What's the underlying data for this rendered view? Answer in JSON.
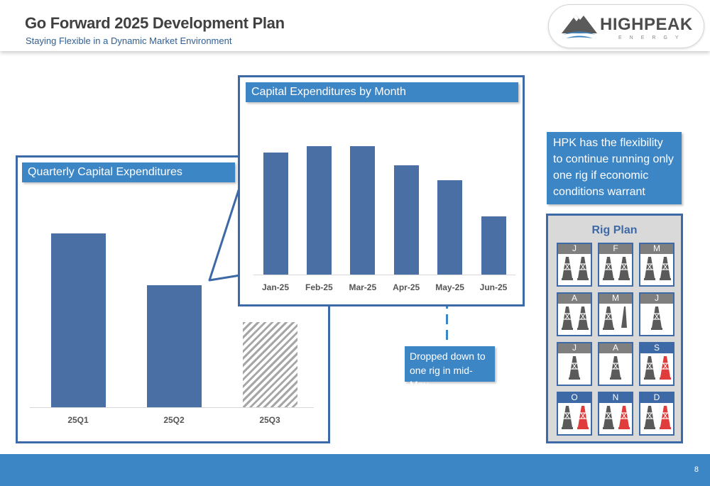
{
  "header": {
    "title": "Go Forward 2025 Development Plan",
    "subtitle": "Staying Flexible in a Dynamic Market Environment",
    "logo_text": "HIGHPEAK",
    "logo_sub": "ENERGY"
  },
  "chart_data": [
    {
      "type": "bar",
      "title": "Quarterly Capital Expenditures",
      "categories": [
        "25Q1",
        "25Q2",
        "25Q3"
      ],
      "values": [
        100,
        70,
        49
      ],
      "styles": [
        "solid",
        "solid",
        "hatched"
      ],
      "ylim": [
        0,
        110
      ],
      "grid": false,
      "colors": {
        "bar": "#4a6fa5",
        "hatch": "#a6a6a6"
      }
    },
    {
      "type": "bar",
      "title": "Capital Expenditures by Month",
      "categories": [
        "Jan-25",
        "Feb-25",
        "Mar-25",
        "Apr-25",
        "May-25",
        "Jun-25"
      ],
      "values": [
        96,
        101,
        101,
        86,
        74,
        46
      ],
      "ylim": [
        0,
        110
      ],
      "grid": false,
      "colors": {
        "bar": "#4a6fa5"
      }
    }
  ],
  "callouts": {
    "flexibility": "HPK has the flexibility to continue running only one rig if economic conditions warrant",
    "drop": "Dropped down to one rig in mid-May"
  },
  "rig_plan": {
    "title": "Rig Plan",
    "months": [
      {
        "label": "J",
        "gray_rigs": 2,
        "red_rigs": 0,
        "half_rig": false,
        "future": false
      },
      {
        "label": "F",
        "gray_rigs": 2,
        "red_rigs": 0,
        "half_rig": false,
        "future": false
      },
      {
        "label": "M",
        "gray_rigs": 2,
        "red_rigs": 0,
        "half_rig": false,
        "future": false
      },
      {
        "label": "A",
        "gray_rigs": 2,
        "red_rigs": 0,
        "half_rig": false,
        "future": false
      },
      {
        "label": "M",
        "gray_rigs": 1,
        "red_rigs": 0,
        "half_rig": true,
        "future": false
      },
      {
        "label": "J",
        "gray_rigs": 1,
        "red_rigs": 0,
        "half_rig": false,
        "future": false
      },
      {
        "label": "J",
        "gray_rigs": 1,
        "red_rigs": 0,
        "half_rig": false,
        "future": false
      },
      {
        "label": "A",
        "gray_rigs": 1,
        "red_rigs": 0,
        "half_rig": false,
        "future": false
      },
      {
        "label": "S",
        "gray_rigs": 1,
        "red_rigs": 1,
        "half_rig": false,
        "future": true
      },
      {
        "label": "O",
        "gray_rigs": 1,
        "red_rigs": 1,
        "half_rig": false,
        "future": true
      },
      {
        "label": "N",
        "gray_rigs": 1,
        "red_rigs": 1,
        "half_rig": false,
        "future": true
      },
      {
        "label": "D",
        "gray_rigs": 1,
        "red_rigs": 1,
        "half_rig": false,
        "future": true
      }
    ]
  },
  "footer": {
    "page_number": "8"
  }
}
